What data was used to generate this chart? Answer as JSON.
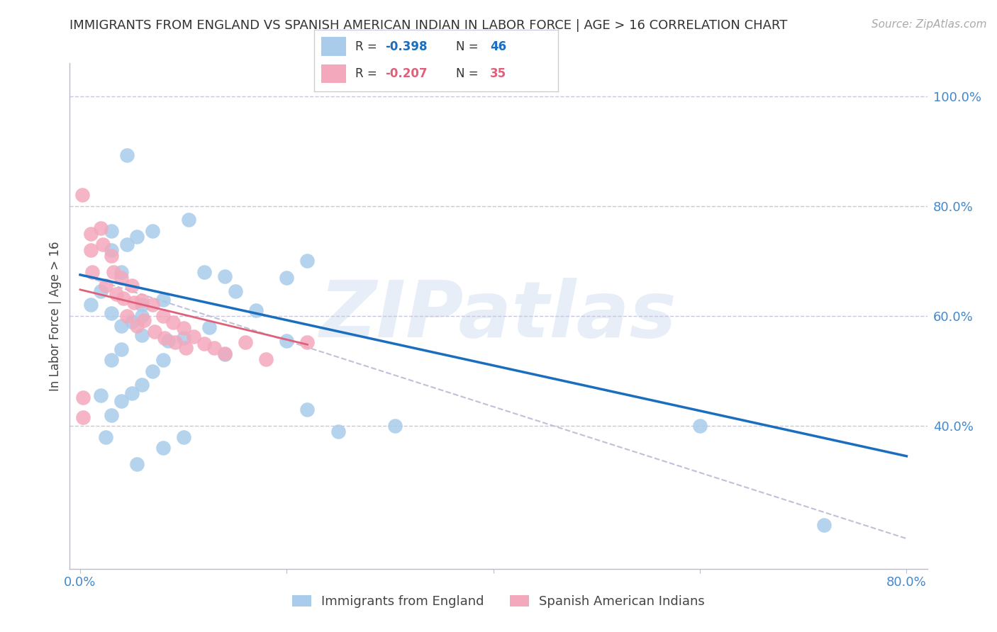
{
  "title": "IMMIGRANTS FROM ENGLAND VS SPANISH AMERICAN INDIAN IN LABOR FORCE | AGE > 16 CORRELATION CHART",
  "source": "Source: ZipAtlas.com",
  "ylabel": "In Labor Force | Age > 16",
  "ytick_labels": [
    "100.0%",
    "80.0%",
    "60.0%",
    "40.0%"
  ],
  "ytick_values": [
    1.0,
    0.8,
    0.6,
    0.4
  ],
  "xlim": [
    -0.01,
    0.82
  ],
  "ylim": [
    0.14,
    1.06
  ],
  "watermark": "ZIPatlas",
  "legend_blue_r": "-0.398",
  "legend_blue_n": "46",
  "legend_pink_r": "-0.207",
  "legend_pink_n": "35",
  "blue_color": "#A8CCEA",
  "pink_color": "#F4A8BC",
  "line_blue": "#1A6DBF",
  "line_pink": "#E0607A",
  "line_dashed_color": "#C0C0D8",
  "title_color": "#333333",
  "axis_color": "#4488CC",
  "grid_color": "#C8C8DC",
  "blue_scatter_x": [
    0.045,
    0.03,
    0.045,
    0.055,
    0.02,
    0.01,
    0.03,
    0.04,
    0.06,
    0.07,
    0.08,
    0.105,
    0.12,
    0.14,
    0.03,
    0.04,
    0.2,
    0.22,
    0.1,
    0.085,
    0.06,
    0.05,
    0.04,
    0.03,
    0.02,
    0.15,
    0.17,
    0.06,
    0.305,
    0.125,
    0.08,
    0.07,
    0.06,
    0.05,
    0.04,
    0.03,
    0.6,
    0.14,
    0.22,
    0.25,
    0.1,
    0.08,
    0.055,
    0.72,
    0.025,
    0.2
  ],
  "blue_scatter_y": [
    0.893,
    0.755,
    0.73,
    0.745,
    0.645,
    0.62,
    0.605,
    0.582,
    0.62,
    0.755,
    0.63,
    0.775,
    0.68,
    0.672,
    0.72,
    0.68,
    0.67,
    0.7,
    0.56,
    0.555,
    0.565,
    0.59,
    0.54,
    0.52,
    0.455,
    0.645,
    0.61,
    0.6,
    0.4,
    0.58,
    0.52,
    0.5,
    0.475,
    0.46,
    0.445,
    0.42,
    0.4,
    0.53,
    0.43,
    0.39,
    0.38,
    0.36,
    0.33,
    0.22,
    0.38,
    0.555
  ],
  "pink_scatter_x": [
    0.002,
    0.003,
    0.01,
    0.01,
    0.012,
    0.02,
    0.022,
    0.025,
    0.03,
    0.032,
    0.035,
    0.04,
    0.042,
    0.045,
    0.05,
    0.052,
    0.055,
    0.06,
    0.062,
    0.07,
    0.072,
    0.08,
    0.082,
    0.09,
    0.092,
    0.1,
    0.102,
    0.11,
    0.12,
    0.13,
    0.14,
    0.16,
    0.18,
    0.22,
    0.003
  ],
  "pink_scatter_y": [
    0.82,
    0.415,
    0.75,
    0.72,
    0.68,
    0.76,
    0.73,
    0.655,
    0.71,
    0.68,
    0.64,
    0.67,
    0.632,
    0.6,
    0.655,
    0.625,
    0.582,
    0.628,
    0.592,
    0.62,
    0.572,
    0.6,
    0.56,
    0.588,
    0.552,
    0.578,
    0.542,
    0.562,
    0.55,
    0.542,
    0.532,
    0.552,
    0.522,
    0.552,
    0.452
  ],
  "blue_line_x": [
    0.0,
    0.8
  ],
  "blue_line_y": [
    0.675,
    0.345
  ],
  "pink_line_x": [
    0.0,
    0.22
  ],
  "pink_line_y": [
    0.648,
    0.548
  ],
  "dashed_line_x": [
    0.0,
    0.8
  ],
  "dashed_line_y": [
    0.675,
    0.195
  ]
}
